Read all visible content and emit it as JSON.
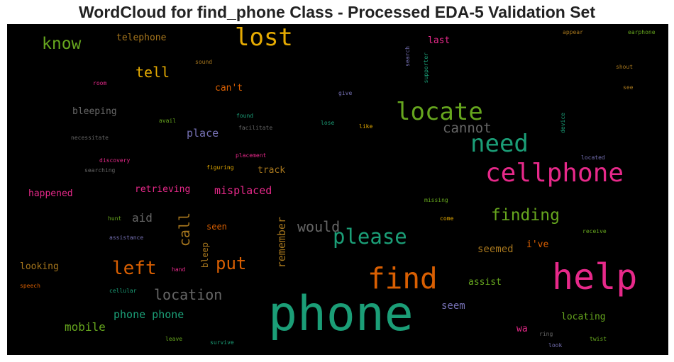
{
  "title": "WordCloud for find_phone Class - Processed EDA-5 Validation Set",
  "chart_data": {
    "type": "wordcloud",
    "background": "#000000",
    "colormap": [
      "#1b9e77",
      "#d95f02",
      "#7570b3",
      "#e7298a",
      "#66a61e",
      "#e6ab02",
      "#a6761d",
      "#666666"
    ],
    "words": [
      {
        "text": "phone",
        "color": "#1b9e77"
      },
      {
        "text": "help",
        "color": "#e7298a"
      },
      {
        "text": "find",
        "color": "#d95f02"
      },
      {
        "text": "cellphone",
        "color": "#e7298a"
      },
      {
        "text": "lost",
        "color": "#e6ab02"
      },
      {
        "text": "locate",
        "color": "#66a61e"
      },
      {
        "text": "need",
        "color": "#1b9e77"
      },
      {
        "text": "please",
        "color": "#1b9e77"
      },
      {
        "text": "know",
        "color": "#66a61e"
      },
      {
        "text": "finding",
        "color": "#66a61e"
      },
      {
        "text": "left",
        "color": "#d95f02"
      },
      {
        "text": "location",
        "color": "#666666"
      },
      {
        "text": "would",
        "color": "#666666"
      },
      {
        "text": "put",
        "color": "#d95f02"
      },
      {
        "text": "tell",
        "color": "#e6ab02"
      },
      {
        "text": "cannot",
        "color": "#666666"
      },
      {
        "text": "call",
        "color": "#a6761d",
        "vertical": true
      },
      {
        "text": "misplaced",
        "color": "#e7298a"
      },
      {
        "text": "mobile",
        "color": "#66a61e"
      },
      {
        "text": "phone phone",
        "color": "#1b9e77"
      },
      {
        "text": "remember",
        "color": "#a6761d",
        "vertical": true
      },
      {
        "text": "place",
        "color": "#7570b3"
      },
      {
        "text": "seemed",
        "color": "#a6761d"
      },
      {
        "text": "aid",
        "color": "#666666"
      },
      {
        "text": "retrieving",
        "color": "#e7298a"
      },
      {
        "text": "bleeping",
        "color": "#666666"
      },
      {
        "text": "can't",
        "color": "#d95f02"
      },
      {
        "text": "locating",
        "color": "#66a61e"
      },
      {
        "text": "happened",
        "color": "#e7298a"
      },
      {
        "text": "looking",
        "color": "#a6761d"
      },
      {
        "text": "seem",
        "color": "#7570b3"
      },
      {
        "text": "telephone",
        "color": "#a6761d"
      },
      {
        "text": "track",
        "color": "#a6761d"
      },
      {
        "text": "assist",
        "color": "#66a61e"
      },
      {
        "text": "i've",
        "color": "#d95f02"
      },
      {
        "text": "seen",
        "color": "#d95f02"
      },
      {
        "text": "bleep",
        "color": "#a6761d",
        "vertical": true
      },
      {
        "text": "last",
        "color": "#e7298a"
      },
      {
        "text": "wa",
        "color": "#e7298a"
      },
      {
        "text": "found",
        "color": "#1b9e77"
      },
      {
        "text": "facilitate",
        "color": "#666666"
      },
      {
        "text": "avail",
        "color": "#66a61e"
      },
      {
        "text": "necessitate",
        "color": "#666666"
      },
      {
        "text": "discovery",
        "color": "#e7298a"
      },
      {
        "text": "searching",
        "color": "#666666"
      },
      {
        "text": "placement",
        "color": "#e7298a"
      },
      {
        "text": "figuring",
        "color": "#e6ab02"
      },
      {
        "text": "lose",
        "color": "#1b9e77"
      },
      {
        "text": "like",
        "color": "#e6ab02"
      },
      {
        "text": "give",
        "color": "#7570b3"
      },
      {
        "text": "room",
        "color": "#e7298a"
      },
      {
        "text": "sound",
        "color": "#a6761d"
      },
      {
        "text": "search",
        "color": "#7570b3",
        "vertical": true
      },
      {
        "text": "supporter",
        "color": "#1b9e77",
        "vertical": true
      },
      {
        "text": "appear",
        "color": "#a6761d"
      },
      {
        "text": "earphone",
        "color": "#66a61e"
      },
      {
        "text": "shout",
        "color": "#a6761d"
      },
      {
        "text": "see",
        "color": "#a6761d"
      },
      {
        "text": "device",
        "color": "#1b9e77",
        "vertical": true
      },
      {
        "text": "located",
        "color": "#7570b3"
      },
      {
        "text": "missing",
        "color": "#66a61e"
      },
      {
        "text": "come",
        "color": "#e6ab02"
      },
      {
        "text": "receive",
        "color": "#66a61e"
      },
      {
        "text": "hunt",
        "color": "#66a61e"
      },
      {
        "text": "assistance",
        "color": "#7570b3"
      },
      {
        "text": "hand",
        "color": "#e7298a"
      },
      {
        "text": "speech",
        "color": "#d95f02"
      },
      {
        "text": "cellular",
        "color": "#1b9e77"
      },
      {
        "text": "leave",
        "color": "#66a61e"
      },
      {
        "text": "survive",
        "color": "#1b9e77"
      },
      {
        "text": "ring",
        "color": "#666666"
      },
      {
        "text": "look",
        "color": "#7570b3"
      },
      {
        "text": "twist",
        "color": "#66a61e"
      }
    ]
  }
}
